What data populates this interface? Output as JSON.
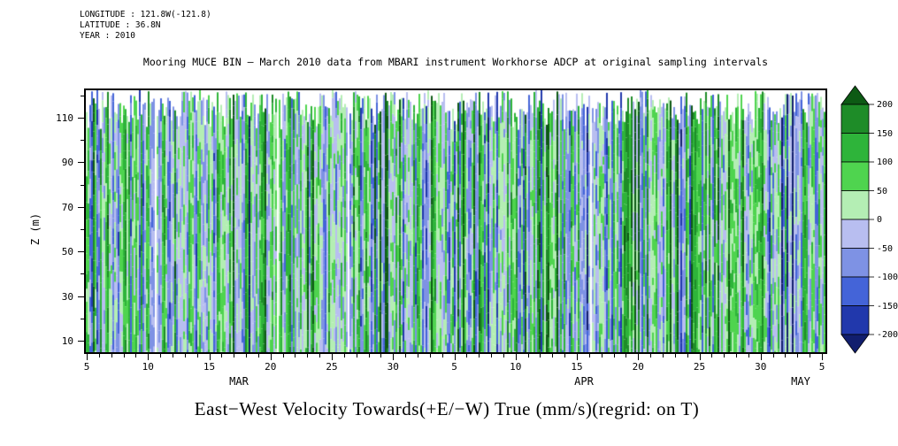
{
  "header": {
    "longitude": "LONGITUDE : 121.8W(-121.8)",
    "latitude": "LATITUDE : 36.8N",
    "year": "YEAR : 2010"
  },
  "title": "Mooring MUCE BIN — March 2010 data from MBARI instrument Workhorse ADCP at original sampling intervals",
  "caption": "East−West Velocity Towards(+E/−W) True (mm/s)(regrid: on T)",
  "y_axis": {
    "label": "Z (m)",
    "ticks": [
      10,
      30,
      50,
      70,
      90,
      110
    ],
    "minor_ticks": [
      20,
      40,
      60,
      80,
      100,
      120
    ]
  },
  "x_axis": {
    "tick_labels": [
      "5",
      "10",
      "15",
      "20",
      "25",
      "30",
      "5",
      "10",
      "15",
      "20",
      "25",
      "30",
      "5"
    ],
    "month_labels": [
      "MAR",
      "APR",
      "MAY"
    ]
  },
  "colorbar": {
    "labels": [
      "200",
      "150",
      "100",
      "50",
      "0",
      "-50",
      "-100",
      "-150",
      "-200"
    ],
    "boundaries": [
      200,
      150,
      100,
      50,
      0,
      -50,
      -100,
      -150,
      -200
    ],
    "colors_top_to_bottom": [
      "#0d5a14",
      "#1e8c28",
      "#2eb43a",
      "#4fd44f",
      "#b4eeb4",
      "#b8bef0",
      "#7e92e4",
      "#4464d8",
      "#2138ac",
      "#111e6e"
    ]
  },
  "chart_data": {
    "type": "heatmap",
    "title": "Mooring MUCE BIN — March 2010 data from MBARI instrument Workhorse ADCP at original sampling intervals",
    "value_label": "East−West Velocity Towards(+E/−W) True (mm/s)(regrid: on T)",
    "units": "mm/s",
    "ylabel": "Z (m)",
    "ylim": [
      4,
      123
    ],
    "y_ticks": [
      10,
      30,
      50,
      70,
      90,
      110
    ],
    "x_range": "2010-03-05 to 2010-05-05",
    "x_tick_days": [
      "5",
      "10",
      "15",
      "20",
      "25",
      "30",
      "5",
      "10",
      "15",
      "20",
      "25",
      "30",
      "5"
    ],
    "x_months": [
      "MAR",
      "APR",
      "MAY"
    ],
    "value_scale_boundaries": [
      200,
      150,
      100,
      50,
      0,
      -50,
      -100,
      -150,
      -200
    ],
    "value_scale_colors_high_to_low": [
      "#0d5a14",
      "#1e8c28",
      "#2eb43a",
      "#4fd44f",
      "#b4eeb4",
      "#b8bef0",
      "#7e92e4",
      "#4464d8",
      "#2138ac",
      "#111e6e"
    ],
    "legend_position": "right-colorbar-with-arrow-caps",
    "grid": false,
    "field_description": "Dense vertical stripes alternating eastward (greens, positive) and westward (blues, negative) velocity columns at original sampling intervals; data top edge ragged between ~104 m and ~123 m"
  }
}
